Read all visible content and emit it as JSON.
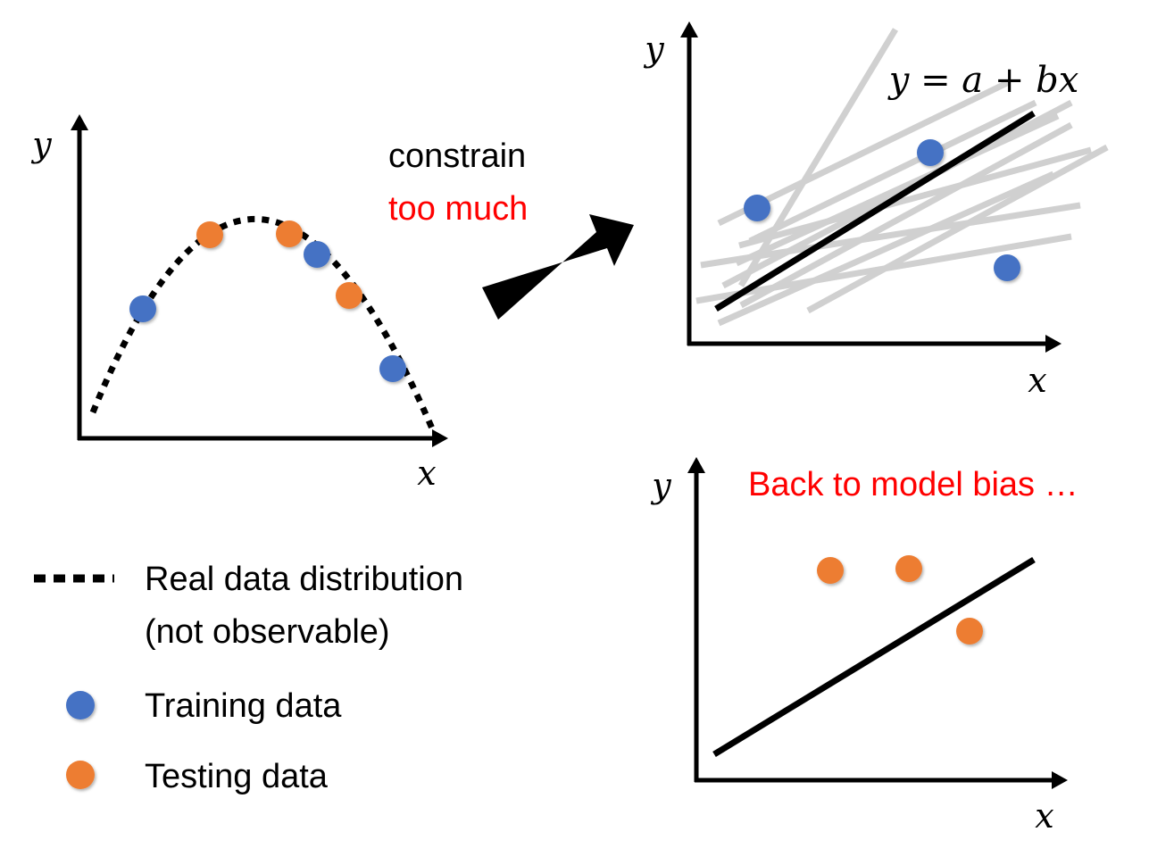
{
  "colors": {
    "training": "#4472c4",
    "testing": "#ed7d31",
    "accent_text": "#ff0000",
    "axis": "#000000",
    "candidate_lines": "#d0d0d0"
  },
  "left_plot": {
    "x_label": "x",
    "y_label": "y"
  },
  "arrow": {
    "line1": "constrain",
    "line2": "too much"
  },
  "top_right_plot": {
    "x_label": "x",
    "y_label": "y",
    "equation": "y = a + bx"
  },
  "bottom_right_plot": {
    "x_label": "x",
    "y_label": "y",
    "caption": "Back to model bias …"
  },
  "legend": {
    "dotted_line_label_1": "Real data distribution",
    "dotted_line_label_2": "(not observable)",
    "training_label": "Training data",
    "testing_label": "Testing data"
  }
}
